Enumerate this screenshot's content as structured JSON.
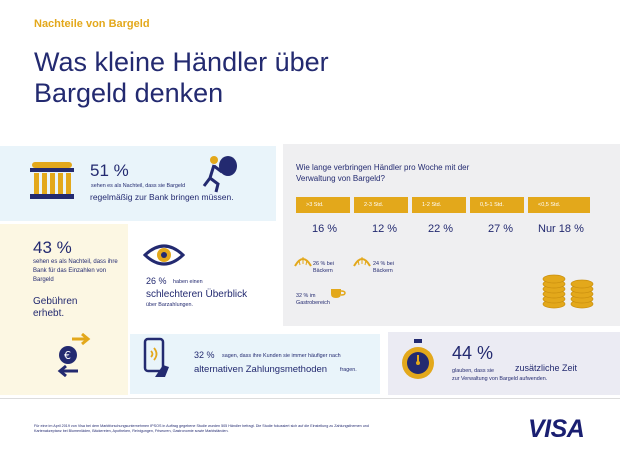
{
  "header": {
    "subtitle": "Nachteile von Bargeld",
    "title": "Was kleine Händler über Bargeld denken"
  },
  "bank": {
    "pct": "51 %",
    "small": "sehen es als Nachteil, dass sie Bargeld",
    "mid": "regelmäßig zur Bank bringen müssen."
  },
  "fees": {
    "pct": "43 %",
    "small": "sehen es als Nachteil, dass ihre Bank für das Einzahlen von Bargeld",
    "mid": "Gebühren erhebt."
  },
  "overview": {
    "pct": "26 %",
    "small1": "haben einen",
    "mid": "schlechteren Überblick",
    "small2": "über Barzahlungen."
  },
  "time": {
    "question": "Wie lange verbringen Händler pro Woche mit der Verwaltung von Bargeld?",
    "categories": [
      ">3 Std.",
      "2-3 Std.",
      "1-2 Std.",
      "0,5-1 Std.",
      "<0,5 Std."
    ],
    "values_label": [
      "16 %",
      "12 %",
      "22 %",
      "27 %",
      "Nur 18 %"
    ],
    "detail": [
      {
        "label": "26 % bei Bäckern"
      },
      {
        "label": "24 % bei Bäckern"
      },
      {
        "label": "32 % im Gastrobereich"
      }
    ]
  },
  "chart_data": {
    "type": "table",
    "title": "Wie lange verbringen Händler pro Woche mit der Verwaltung von Bargeld?",
    "categories": [
      ">3 Std.",
      "2-3 Std.",
      "1-2 Std.",
      "0,5-1 Std.",
      "<0,5 Std."
    ],
    "values": [
      16,
      12,
      22,
      27,
      18
    ],
    "unit": "%"
  },
  "alt": {
    "pct": "32 %",
    "small": "sagen, dass ihre Kunden sie immer häufiger nach",
    "mid": "alternativen Zahlungsmethoden",
    "small2": "fragen."
  },
  "extra": {
    "pct": "44 %",
    "small": "glauben, dass sie",
    "mid": "zusätzliche Zeit",
    "small2": "zur Verwaltung von Bargeld aufwenden."
  },
  "footer": {
    "note": "Für eine im April 2019 von Visa bei dem Marktforschungsunternehmen IPSOS in Auftrag gegebene Studie wurden 505 Händler befragt. Die Studie fokussiert sich auf die Einstellung zu Zahlungsthemen und Kartenakzeptanz bei Blumenläden, Bäckereien, Apotheken, Reinigungen, Friseuren, Gastronomie sowie Marktständen.",
    "logo": "VISA"
  },
  "colors": {
    "navy": "#232a70",
    "gold": "#e3a81b",
    "lightblue": "#e9f4fa",
    "cream": "#fcf7e3",
    "grey": "#efeff1"
  }
}
